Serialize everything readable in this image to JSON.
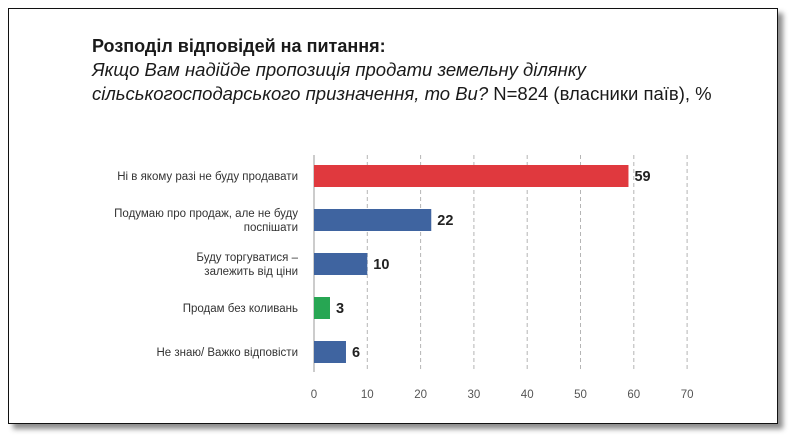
{
  "chart_data": {
    "type": "bar",
    "orientation": "horizontal",
    "title": "Розподіл відповідей на питання:",
    "subtitle_question": "Якщо Вам надійде пропозиція продати земельну ділянку сільськогосподарського призначення, то Ви?",
    "subtitle_note": " N=824 (власники паїв), %",
    "categories": [
      [
        "Ні в якому разі не буду продавати"
      ],
      [
        "Подумаю про продаж, але не буду",
        "поспішати"
      ],
      [
        "Буду торгуватися –",
        "залежить від ціни"
      ],
      [
        "Продам без коливань"
      ],
      [
        "Не знаю/ Важко відповісти"
      ]
    ],
    "values": [
      59,
      22,
      10,
      3,
      6
    ],
    "value_labels": [
      "59",
      "22",
      "10",
      "3",
      "6"
    ],
    "bar_colors": [
      "#e0393e",
      "#3f64a0",
      "#3f64a0",
      "#27a653",
      "#3f64a0"
    ],
    "xlim": [
      0,
      70
    ],
    "xticks": [
      "0",
      "10",
      "20",
      "30",
      "40",
      "50",
      "60",
      "70"
    ],
    "grid": "vertical dashed",
    "legend": "none"
  }
}
